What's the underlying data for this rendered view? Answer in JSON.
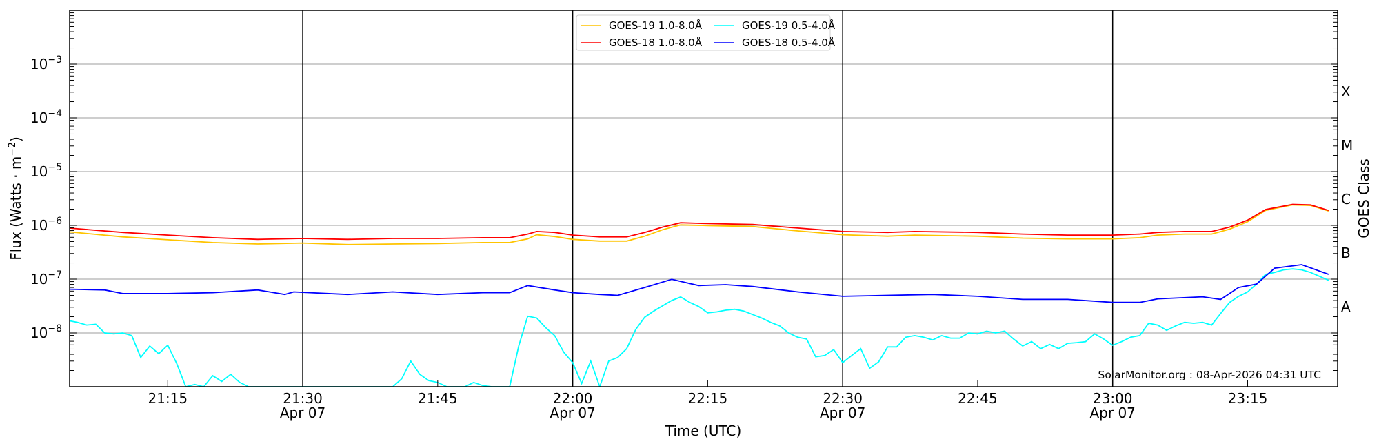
{
  "chart_data": {
    "type": "line",
    "xlabel": "Time (UTC)",
    "ylabel": "Flux (Watts · m",
    "ylabel_sup": "−2",
    "ylabel_end": ")",
    "y2label": "GOES Class",
    "yscale": "log",
    "ylim": [
      1e-09,
      0.01
    ],
    "xlim": [
      "21:04",
      "23:25"
    ],
    "grid": "horizontal at decades, vertical black lines at day-labelled ticks",
    "legend_placement": "top-center",
    "watermark": "SolarMonitor.org : 08-Apr-2026 04:31 UTC",
    "yticks": [
      {
        "value": 1e-08,
        "base": "10",
        "exp": "−8"
      },
      {
        "value": 1e-07,
        "base": "10",
        "exp": "−7"
      },
      {
        "value": 1e-06,
        "base": "10",
        "exp": "−6"
      },
      {
        "value": 1e-05,
        "base": "10",
        "exp": "−5"
      },
      {
        "value": 0.0001,
        "base": "10",
        "exp": "−4"
      },
      {
        "value": 0.001,
        "base": "10",
        "exp": "−3"
      }
    ],
    "goes_classes": [
      {
        "label": "A",
        "value": 3.16e-08
      },
      {
        "label": "B",
        "value": 3.16e-07
      },
      {
        "label": "C",
        "value": 3.16e-06
      },
      {
        "label": "M",
        "value": 3.16e-05
      },
      {
        "label": "X",
        "value": 0.000316
      }
    ],
    "xticks": [
      {
        "time": "21:15",
        "label": "21:15",
        "date": ""
      },
      {
        "time": "21:30",
        "label": "21:30",
        "date": "Apr 07"
      },
      {
        "time": "21:45",
        "label": "21:45",
        "date": ""
      },
      {
        "time": "22:00",
        "label": "22:00",
        "date": "Apr 07"
      },
      {
        "time": "22:15",
        "label": "22:15",
        "date": ""
      },
      {
        "time": "22:30",
        "label": "22:30",
        "date": "Apr 07"
      },
      {
        "time": "22:45",
        "label": "22:45",
        "date": ""
      },
      {
        "time": "23:00",
        "label": "23:00",
        "date": "Apr 07"
      },
      {
        "time": "23:15",
        "label": "23:15",
        "date": ""
      }
    ],
    "series": [
      {
        "name": "GOES-19 1.0-8.0Å",
        "color": "#ffc400",
        "points": [
          [
            "21:04",
            7.6e-07
          ],
          [
            "21:10",
            6.1e-07
          ],
          [
            "21:15",
            5.4e-07
          ],
          [
            "21:20",
            4.8e-07
          ],
          [
            "21:25",
            4.5e-07
          ],
          [
            "21:30",
            4.7e-07
          ],
          [
            "21:35",
            4.4e-07
          ],
          [
            "21:40",
            4.5e-07
          ],
          [
            "21:45",
            4.6e-07
          ],
          [
            "21:50",
            4.8e-07
          ],
          [
            "21:53",
            4.8e-07
          ],
          [
            "21:55",
            5.6e-07
          ],
          [
            "21:56",
            6.7e-07
          ],
          [
            "21:58",
            6.2e-07
          ],
          [
            "22:00",
            5.5e-07
          ],
          [
            "22:03",
            5.1e-07
          ],
          [
            "22:06",
            5.1e-07
          ],
          [
            "22:08",
            6.3e-07
          ],
          [
            "22:10",
            8.3e-07
          ],
          [
            "22:12",
            1.02e-06
          ],
          [
            "22:15",
            9.9e-07
          ],
          [
            "22:20",
            9.5e-07
          ],
          [
            "22:25",
            7.9e-07
          ],
          [
            "22:30",
            6.7e-07
          ],
          [
            "22:35",
            6.3e-07
          ],
          [
            "22:38",
            6.6e-07
          ],
          [
            "22:45",
            6.3e-07
          ],
          [
            "22:50",
            5.8e-07
          ],
          [
            "22:55",
            5.6e-07
          ],
          [
            "23:00",
            5.6e-07
          ],
          [
            "23:03",
            5.9e-07
          ],
          [
            "23:05",
            6.6e-07
          ],
          [
            "23:08",
            6.9e-07
          ],
          [
            "23:11",
            6.9e-07
          ],
          [
            "23:13",
            8.5e-07
          ],
          [
            "23:15",
            1.17e-06
          ],
          [
            "23:17",
            1.9e-06
          ],
          [
            "23:20",
            2.4e-06
          ],
          [
            "23:22",
            2.35e-06
          ],
          [
            "23:24",
            1.85e-06
          ]
        ]
      },
      {
        "name": "GOES-18 1.0-8.0Å",
        "color": "#ff0000",
        "points": [
          [
            "21:04",
            8.9e-07
          ],
          [
            "21:10",
            7.4e-07
          ],
          [
            "21:15",
            6.6e-07
          ],
          [
            "21:20",
            5.9e-07
          ],
          [
            "21:25",
            5.5e-07
          ],
          [
            "21:30",
            5.7e-07
          ],
          [
            "21:35",
            5.5e-07
          ],
          [
            "21:40",
            5.7e-07
          ],
          [
            "21:45",
            5.7e-07
          ],
          [
            "21:50",
            5.9e-07
          ],
          [
            "21:53",
            5.9e-07
          ],
          [
            "21:55",
            6.9e-07
          ],
          [
            "21:56",
            7.7e-07
          ],
          [
            "21:58",
            7.4e-07
          ],
          [
            "22:00",
            6.6e-07
          ],
          [
            "22:03",
            6.1e-07
          ],
          [
            "22:06",
            6.1e-07
          ],
          [
            "22:08",
            7.4e-07
          ],
          [
            "22:10",
            9.3e-07
          ],
          [
            "22:12",
            1.12e-06
          ],
          [
            "22:15",
            1.08e-06
          ],
          [
            "22:20",
            1.04e-06
          ],
          [
            "22:25",
            8.9e-07
          ],
          [
            "22:30",
            7.7e-07
          ],
          [
            "22:35",
            7.4e-07
          ],
          [
            "22:38",
            7.7e-07
          ],
          [
            "22:45",
            7.4e-07
          ],
          [
            "22:50",
            6.9e-07
          ],
          [
            "22:55",
            6.6e-07
          ],
          [
            "23:00",
            6.6e-07
          ],
          [
            "23:03",
            6.9e-07
          ],
          [
            "23:05",
            7.4e-07
          ],
          [
            "23:08",
            7.7e-07
          ],
          [
            "23:11",
            7.7e-07
          ],
          [
            "23:13",
            9.3e-07
          ],
          [
            "23:15",
            1.25e-06
          ],
          [
            "23:17",
            1.97e-06
          ],
          [
            "23:20",
            2.46e-06
          ],
          [
            "23:22",
            2.4e-06
          ],
          [
            "23:24",
            1.9e-06
          ]
        ]
      },
      {
        "name": "GOES-19 0.5-4.0Å",
        "color": "#00ffff",
        "points": [
          [
            "21:04",
            1.69e-08
          ],
          [
            "21:05",
            1.57e-08
          ],
          [
            "21:06",
            1.4e-08
          ],
          [
            "21:07",
            1.45e-08
          ],
          [
            "21:08",
            1e-08
          ],
          [
            "21:09",
            9.6e-09
          ],
          [
            "21:10",
            1e-08
          ],
          [
            "21:11",
            8.9e-09
          ],
          [
            "21:12",
            3.5e-09
          ],
          [
            "21:13",
            5.7e-09
          ],
          [
            "21:14",
            4.1e-09
          ],
          [
            "21:15",
            5.9e-09
          ],
          [
            "21:16",
            2.7e-09
          ],
          [
            "21:17",
            1e-09
          ],
          [
            "21:18",
            1.1e-09
          ],
          [
            "21:19",
            1e-09
          ],
          [
            "21:20",
            1.6e-09
          ],
          [
            "21:21",
            1.25e-09
          ],
          [
            "21:22",
            1.7e-09
          ],
          [
            "21:23",
            1.2e-09
          ],
          [
            "21:24",
            1e-09
          ],
          [
            "21:40",
            1e-09
          ],
          [
            "21:41",
            1.4e-09
          ],
          [
            "21:42",
            3e-09
          ],
          [
            "21:43",
            1.7e-09
          ],
          [
            "21:44",
            1.3e-09
          ],
          [
            "21:45",
            1.2e-09
          ],
          [
            "21:46",
            1e-09
          ],
          [
            "21:48",
            1e-09
          ],
          [
            "21:49",
            1.2e-09
          ],
          [
            "21:50",
            1.05e-09
          ],
          [
            "21:51",
            1e-09
          ],
          [
            "21:53",
            1e-09
          ],
          [
            "21:54",
            5.7e-09
          ],
          [
            "21:55",
            2.04e-08
          ],
          [
            "21:56",
            1.89e-08
          ],
          [
            "21:57",
            1.25e-08
          ],
          [
            "21:58",
            8.9e-09
          ],
          [
            "21:59",
            4.4e-09
          ],
          [
            "22:00",
            2.8e-09
          ],
          [
            "22:01",
            1.15e-09
          ],
          [
            "22:02",
            3e-09
          ],
          [
            "22:03",
            1e-09
          ],
          [
            "22:04",
            3e-09
          ],
          [
            "22:05",
            3.5e-09
          ],
          [
            "22:06",
            5.1e-09
          ],
          [
            "22:07",
            1.16e-08
          ],
          [
            "22:08",
            1.96e-08
          ],
          [
            "22:09",
            2.55e-08
          ],
          [
            "22:10",
            3.2e-08
          ],
          [
            "22:11",
            4e-08
          ],
          [
            "22:12",
            4.65e-08
          ],
          [
            "22:13",
            3.7e-08
          ],
          [
            "22:14",
            3.1e-08
          ],
          [
            "22:15",
            2.37e-08
          ],
          [
            "22:16",
            2.46e-08
          ],
          [
            "22:17",
            2.65e-08
          ],
          [
            "22:18",
            2.75e-08
          ],
          [
            "22:19",
            2.55e-08
          ],
          [
            "22:20",
            2.2e-08
          ],
          [
            "22:21",
            1.89e-08
          ],
          [
            "22:22",
            1.57e-08
          ],
          [
            "22:23",
            1.35e-08
          ],
          [
            "22:24",
            1e-08
          ],
          [
            "22:25",
            8.3e-09
          ],
          [
            "22:26",
            7.7e-09
          ],
          [
            "22:27",
            3.6e-09
          ],
          [
            "22:28",
            3.8e-09
          ],
          [
            "22:29",
            4.9e-09
          ],
          [
            "22:30",
            2.8e-09
          ],
          [
            "22:31",
            3.8e-09
          ],
          [
            "22:32",
            5.1e-09
          ],
          [
            "22:33",
            2.2e-09
          ],
          [
            "22:34",
            2.9e-09
          ],
          [
            "22:35",
            5.5e-09
          ],
          [
            "22:36",
            5.5e-09
          ],
          [
            "22:37",
            8.3e-09
          ],
          [
            "22:38",
            8.9e-09
          ],
          [
            "22:39",
            8.3e-09
          ],
          [
            "22:40",
            7.4e-09
          ],
          [
            "22:41",
            8.9e-09
          ],
          [
            "22:42",
            8e-09
          ],
          [
            "22:43",
            8e-09
          ],
          [
            "22:44",
            1e-08
          ],
          [
            "22:45",
            9.6e-09
          ],
          [
            "22:46",
            1.08e-08
          ],
          [
            "22:47",
            1e-08
          ],
          [
            "22:48",
            1.08e-08
          ],
          [
            "22:49",
            7.7e-09
          ],
          [
            "22:50",
            5.7e-09
          ],
          [
            "22:51",
            6.9e-09
          ],
          [
            "22:52",
            5.1e-09
          ],
          [
            "22:53",
            6.1e-09
          ],
          [
            "22:54",
            5.1e-09
          ],
          [
            "22:55",
            6.4e-09
          ],
          [
            "22:56",
            6.6e-09
          ],
          [
            "22:57",
            6.9e-09
          ],
          [
            "22:58",
            9.6e-09
          ],
          [
            "22:59",
            7.7e-09
          ],
          [
            "23:00",
            5.9e-09
          ],
          [
            "23:01",
            6.9e-09
          ],
          [
            "23:02",
            8.3e-09
          ],
          [
            "23:03",
            8.9e-09
          ],
          [
            "23:04",
            1.51e-08
          ],
          [
            "23:05",
            1.4e-08
          ],
          [
            "23:06",
            1.12e-08
          ],
          [
            "23:07",
            1.35e-08
          ],
          [
            "23:08",
            1.57e-08
          ],
          [
            "23:09",
            1.51e-08
          ],
          [
            "23:10",
            1.57e-08
          ],
          [
            "23:11",
            1.4e-08
          ],
          [
            "23:12",
            2.3e-08
          ],
          [
            "23:13",
            3.7e-08
          ],
          [
            "23:14",
            4.8e-08
          ],
          [
            "23:15",
            5.8e-08
          ],
          [
            "23:16",
            8.1e-08
          ],
          [
            "23:17",
            1.23e-07
          ],
          [
            "23:18",
            1.33e-07
          ],
          [
            "23:19",
            1.49e-07
          ],
          [
            "23:20",
            1.55e-07
          ],
          [
            "23:21",
            1.49e-07
          ],
          [
            "23:22",
            1.33e-07
          ],
          [
            "23:24",
            9.5e-08
          ]
        ]
      },
      {
        "name": "GOES-18 0.5-4.0Å",
        "color": "#0000ff",
        "points": [
          [
            "21:04",
            6.5e-08
          ],
          [
            "21:08",
            6.3e-08
          ],
          [
            "21:10",
            5.4e-08
          ],
          [
            "21:15",
            5.4e-08
          ],
          [
            "21:20",
            5.6e-08
          ],
          [
            "21:25",
            6.3e-08
          ],
          [
            "21:28",
            5.2e-08
          ],
          [
            "21:29",
            5.8e-08
          ],
          [
            "21:35",
            5.2e-08
          ],
          [
            "21:40",
            5.8e-08
          ],
          [
            "21:45",
            5.2e-08
          ],
          [
            "21:50",
            5.6e-08
          ],
          [
            "21:53",
            5.6e-08
          ],
          [
            "21:55",
            7.6e-08
          ],
          [
            "21:58",
            6.3e-08
          ],
          [
            "22:00",
            5.6e-08
          ],
          [
            "22:03",
            5.2e-08
          ],
          [
            "22:05",
            5e-08
          ],
          [
            "22:08",
            7e-08
          ],
          [
            "22:11",
            9.9e-08
          ],
          [
            "22:14",
            7.6e-08
          ],
          [
            "22:17",
            7.9e-08
          ],
          [
            "22:20",
            7.3e-08
          ],
          [
            "22:25",
            5.8e-08
          ],
          [
            "22:30",
            4.8e-08
          ],
          [
            "22:35",
            5e-08
          ],
          [
            "22:40",
            5.2e-08
          ],
          [
            "22:45",
            4.8e-08
          ],
          [
            "22:50",
            4.2e-08
          ],
          [
            "22:55",
            4.2e-08
          ],
          [
            "23:00",
            3.7e-08
          ],
          [
            "23:03",
            3.7e-08
          ],
          [
            "23:05",
            4.3e-08
          ],
          [
            "23:10",
            4.7e-08
          ],
          [
            "23:12",
            4.2e-08
          ],
          [
            "23:14",
            7e-08
          ],
          [
            "23:16",
            8.1e-08
          ],
          [
            "23:18",
            1.6e-07
          ],
          [
            "23:21",
            1.86e-07
          ],
          [
            "23:24",
            1.23e-07
          ]
        ]
      }
    ]
  }
}
